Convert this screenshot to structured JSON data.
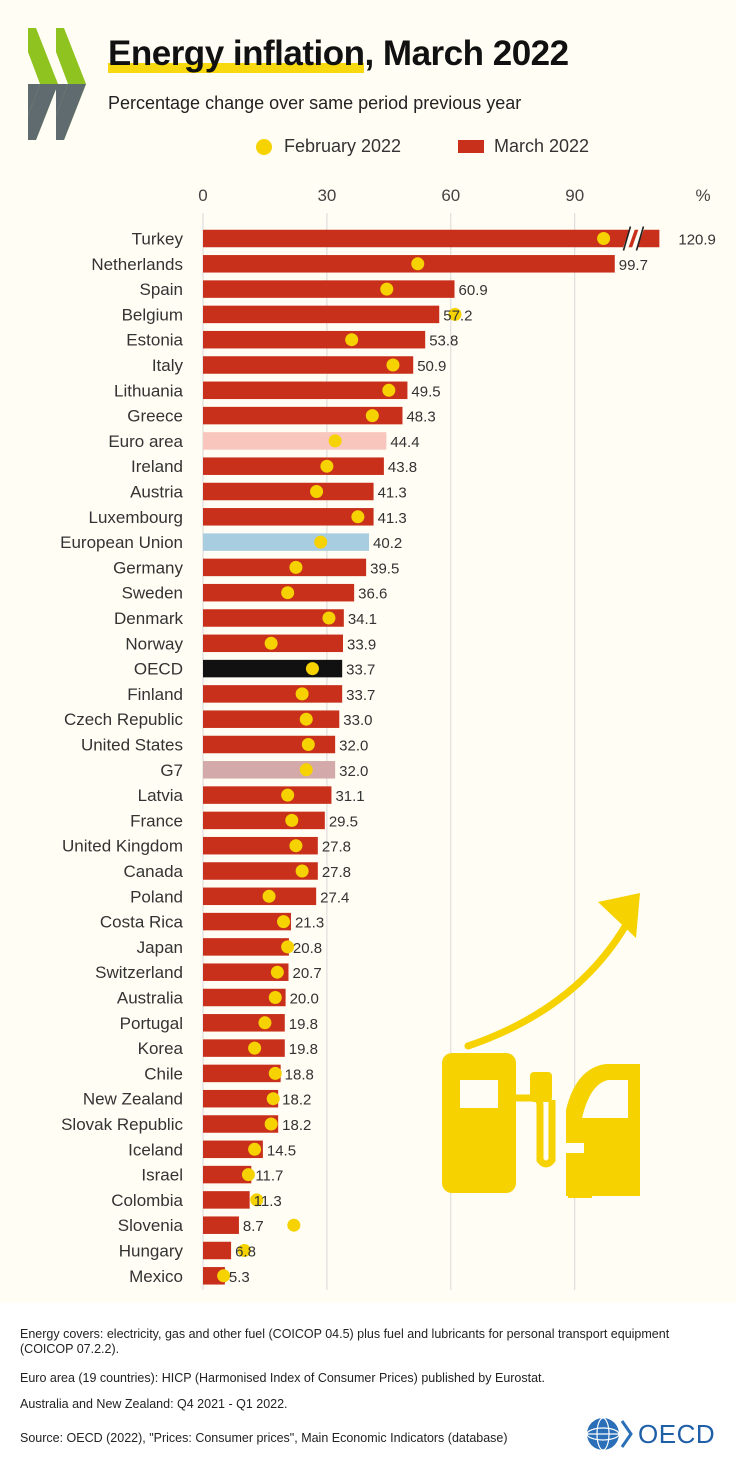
{
  "header": {
    "title_highlight": "Energy inflation",
    "title_rest": ", March 2022",
    "subtitle": "Percentage change over same period previous year"
  },
  "legend": {
    "february_label": "February 2022",
    "march_label": "March 2022"
  },
  "colors": {
    "march": "#c8301c",
    "february": "#f6d200",
    "euro_area": "#f9c6bd",
    "european_union": "#a8cde0",
    "oecd": "#111111",
    "g7": "#d4a9a9",
    "grid": "#d8d8d8"
  },
  "chart_data": {
    "type": "bar",
    "orientation": "horizontal",
    "axis_unit": "%",
    "xlim": [
      0,
      110
    ],
    "xticks": [
      "0",
      "30",
      "60",
      "90"
    ],
    "axis_break_on": "Turkey",
    "series": [
      {
        "name": "March 2022",
        "type": "bar"
      },
      {
        "name": "February 2022",
        "type": "dot"
      }
    ],
    "rows": [
      {
        "label": "Turkey",
        "march": 120.9,
        "march_label": "120.9",
        "february": 97,
        "highlight": "none"
      },
      {
        "label": "Netherlands",
        "march": 99.7,
        "march_label": "99.7",
        "february": 52,
        "highlight": "none"
      },
      {
        "label": "Spain",
        "march": 60.9,
        "march_label": "60.9",
        "february": 44.5,
        "highlight": "none"
      },
      {
        "label": "Belgium",
        "march": 57.2,
        "march_label": "57.2",
        "february": 61,
        "highlight": "none"
      },
      {
        "label": "Estonia",
        "march": 53.8,
        "march_label": "53.8",
        "february": 36,
        "highlight": "none"
      },
      {
        "label": "Italy",
        "march": 50.9,
        "march_label": "50.9",
        "february": 46,
        "highlight": "none"
      },
      {
        "label": "Lithuania",
        "march": 49.5,
        "march_label": "49.5",
        "february": 45,
        "highlight": "none"
      },
      {
        "label": "Greece",
        "march": 48.3,
        "march_label": "48.3",
        "february": 41,
        "highlight": "none"
      },
      {
        "label": "Euro area",
        "march": 44.4,
        "march_label": "44.4",
        "february": 32,
        "highlight": "euro_area"
      },
      {
        "label": "Ireland",
        "march": 43.8,
        "march_label": "43.8",
        "february": 30,
        "highlight": "none"
      },
      {
        "label": "Austria",
        "march": 41.3,
        "march_label": "41.3",
        "february": 27.5,
        "highlight": "none"
      },
      {
        "label": "Luxembourg",
        "march": 41.3,
        "march_label": "41.3",
        "february": 37.5,
        "highlight": "none"
      },
      {
        "label": "European Union",
        "march": 40.2,
        "march_label": "40.2",
        "february": 28.5,
        "highlight": "european_union"
      },
      {
        "label": "Germany",
        "march": 39.5,
        "march_label": "39.5",
        "february": 22.5,
        "highlight": "none"
      },
      {
        "label": "Sweden",
        "march": 36.6,
        "march_label": "36.6",
        "february": 20.5,
        "highlight": "none"
      },
      {
        "label": "Denmark",
        "march": 34.1,
        "march_label": "34.1",
        "february": 30.5,
        "highlight": "none"
      },
      {
        "label": "Norway",
        "march": 33.9,
        "march_label": "33.9",
        "february": 16.5,
        "highlight": "none"
      },
      {
        "label": "OECD",
        "march": 33.7,
        "march_label": "33.7",
        "february": 26.5,
        "highlight": "oecd"
      },
      {
        "label": "Finland",
        "march": 33.7,
        "march_label": "33.7",
        "february": 24,
        "highlight": "none"
      },
      {
        "label": "Czech Republic",
        "march": 33.0,
        "march_label": "33.0",
        "february": 25,
        "highlight": "none"
      },
      {
        "label": "United States",
        "march": 32.0,
        "march_label": "32.0",
        "february": 25.5,
        "highlight": "none"
      },
      {
        "label": "G7",
        "march": 32.0,
        "march_label": "32.0",
        "february": 25,
        "highlight": "g7"
      },
      {
        "label": "Latvia",
        "march": 31.1,
        "march_label": "31.1",
        "february": 20.5,
        "highlight": "none"
      },
      {
        "label": "France",
        "march": 29.5,
        "march_label": "29.5",
        "february": 21.5,
        "highlight": "none"
      },
      {
        "label": "United Kingdom",
        "march": 27.8,
        "march_label": "27.8",
        "february": 22.5,
        "highlight": "none"
      },
      {
        "label": "Canada",
        "march": 27.8,
        "march_label": "27.8",
        "february": 24,
        "highlight": "none"
      },
      {
        "label": "Poland",
        "march": 27.4,
        "march_label": "27.4",
        "february": 16,
        "highlight": "none"
      },
      {
        "label": "Costa Rica",
        "march": 21.3,
        "march_label": "21.3",
        "february": 19.5,
        "highlight": "none"
      },
      {
        "label": "Japan",
        "march": 20.8,
        "march_label": "20.8",
        "february": 20.5,
        "highlight": "none"
      },
      {
        "label": "Switzerland",
        "march": 20.7,
        "march_label": "20.7",
        "february": 18,
        "highlight": "none"
      },
      {
        "label": "Australia",
        "march": 20.0,
        "march_label": "20.0",
        "february": 17.5,
        "highlight": "none"
      },
      {
        "label": "Portugal",
        "march": 19.8,
        "march_label": "19.8",
        "february": 15,
        "highlight": "none"
      },
      {
        "label": "Korea",
        "march": 19.8,
        "march_label": "19.8",
        "february": 12.5,
        "highlight": "none"
      },
      {
        "label": "Chile",
        "march": 18.8,
        "march_label": "18.8",
        "february": 17.5,
        "highlight": "none"
      },
      {
        "label": "New Zealand",
        "march": 18.2,
        "march_label": "18.2",
        "february": 17,
        "highlight": "none"
      },
      {
        "label": "Slovak Republic",
        "march": 18.2,
        "march_label": "18.2",
        "february": 16.5,
        "highlight": "none"
      },
      {
        "label": "Iceland",
        "march": 14.5,
        "march_label": "14.5",
        "february": 12.5,
        "highlight": "none"
      },
      {
        "label": "Israel",
        "march": 11.7,
        "march_label": "11.7",
        "february": 11,
        "highlight": "none"
      },
      {
        "label": "Colombia",
        "march": 11.3,
        "march_label": "11.3",
        "february": 13,
        "highlight": "none"
      },
      {
        "label": "Slovenia",
        "march": 8.7,
        "march_label": "8.7",
        "february": 22,
        "highlight": "none"
      },
      {
        "label": "Hungary",
        "march": 6.8,
        "march_label": "6.8",
        "february": 10,
        "highlight": "none"
      },
      {
        "label": "Mexico",
        "march": 5.3,
        "march_label": "5.3",
        "february": 5,
        "highlight": "none"
      }
    ]
  },
  "footer": {
    "note_energy": "Energy covers: electricity, gas and other fuel (COICOP 04.5) plus fuel and lubricants for personal transport equipment (COICOP 07.2.2).",
    "note_euro": "Euro area (19 countries): HICP (Harmonised Index of Consumer Prices) published by Eurostat.",
    "note_aus": "Australia and New Zealand: Q4 2021 - Q1 2022.",
    "source": "Source: OECD (2022), \"Prices: Consumer prices\", Main Economic Indicators (database)",
    "logo_text": "OECD"
  }
}
